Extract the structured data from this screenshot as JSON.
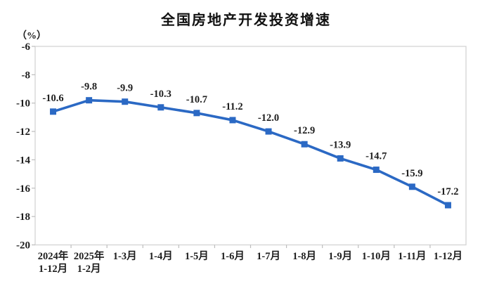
{
  "chart": {
    "title": "全国房地产开发投资增速",
    "unit_label": "（%）"
  },
  "chart_data": {
    "type": "line",
    "title": "全国房地产开发投资增速",
    "ylabel": "（%）",
    "categories": [
      "2024年1-12月",
      "2025年1-2月",
      "1-3月",
      "1-4月",
      "1-5月",
      "1-6月",
      "1-7月",
      "1-8月",
      "1-9月",
      "1-10月",
      "1-11月",
      "1-12月"
    ],
    "category_lines": [
      [
        "2024年",
        "1-12月"
      ],
      [
        "2025年",
        "1-2月"
      ],
      [
        "1-3月"
      ],
      [
        "1-4月"
      ],
      [
        "1-5月"
      ],
      [
        "1-6月"
      ],
      [
        "1-7月"
      ],
      [
        "1-8月"
      ],
      [
        "1-9月"
      ],
      [
        "1-10月"
      ],
      [
        "1-11月"
      ],
      [
        "1-12月"
      ]
    ],
    "values": [
      -10.6,
      -9.8,
      -9.9,
      -10.3,
      -10.7,
      -11.2,
      -12.0,
      -12.9,
      -13.9,
      -14.7,
      -15.9,
      -17.2
    ],
    "data_labels": [
      "-10.6",
      "-9.8",
      "-9.9",
      "-10.3",
      "-10.7",
      "-11.2",
      "-12.0",
      "-12.9",
      "-13.9",
      "-14.7",
      "-15.9",
      "-17.2"
    ],
    "y_ticks": [
      -6,
      -8,
      -10,
      -12,
      -14,
      -16,
      -18,
      -20
    ],
    "y_tick_labels": [
      "-6",
      "-8",
      "-10",
      "-12",
      "-14",
      "-16",
      "-18",
      "-20"
    ],
    "ylim": [
      -20,
      -6
    ],
    "grid": false,
    "legend": false,
    "marker": "square",
    "colors": {
      "series": "#2b69c4",
      "plot_border": "#d4d4d4",
      "tick": "#bdbdbd",
      "text": "#1d1d1d"
    }
  }
}
